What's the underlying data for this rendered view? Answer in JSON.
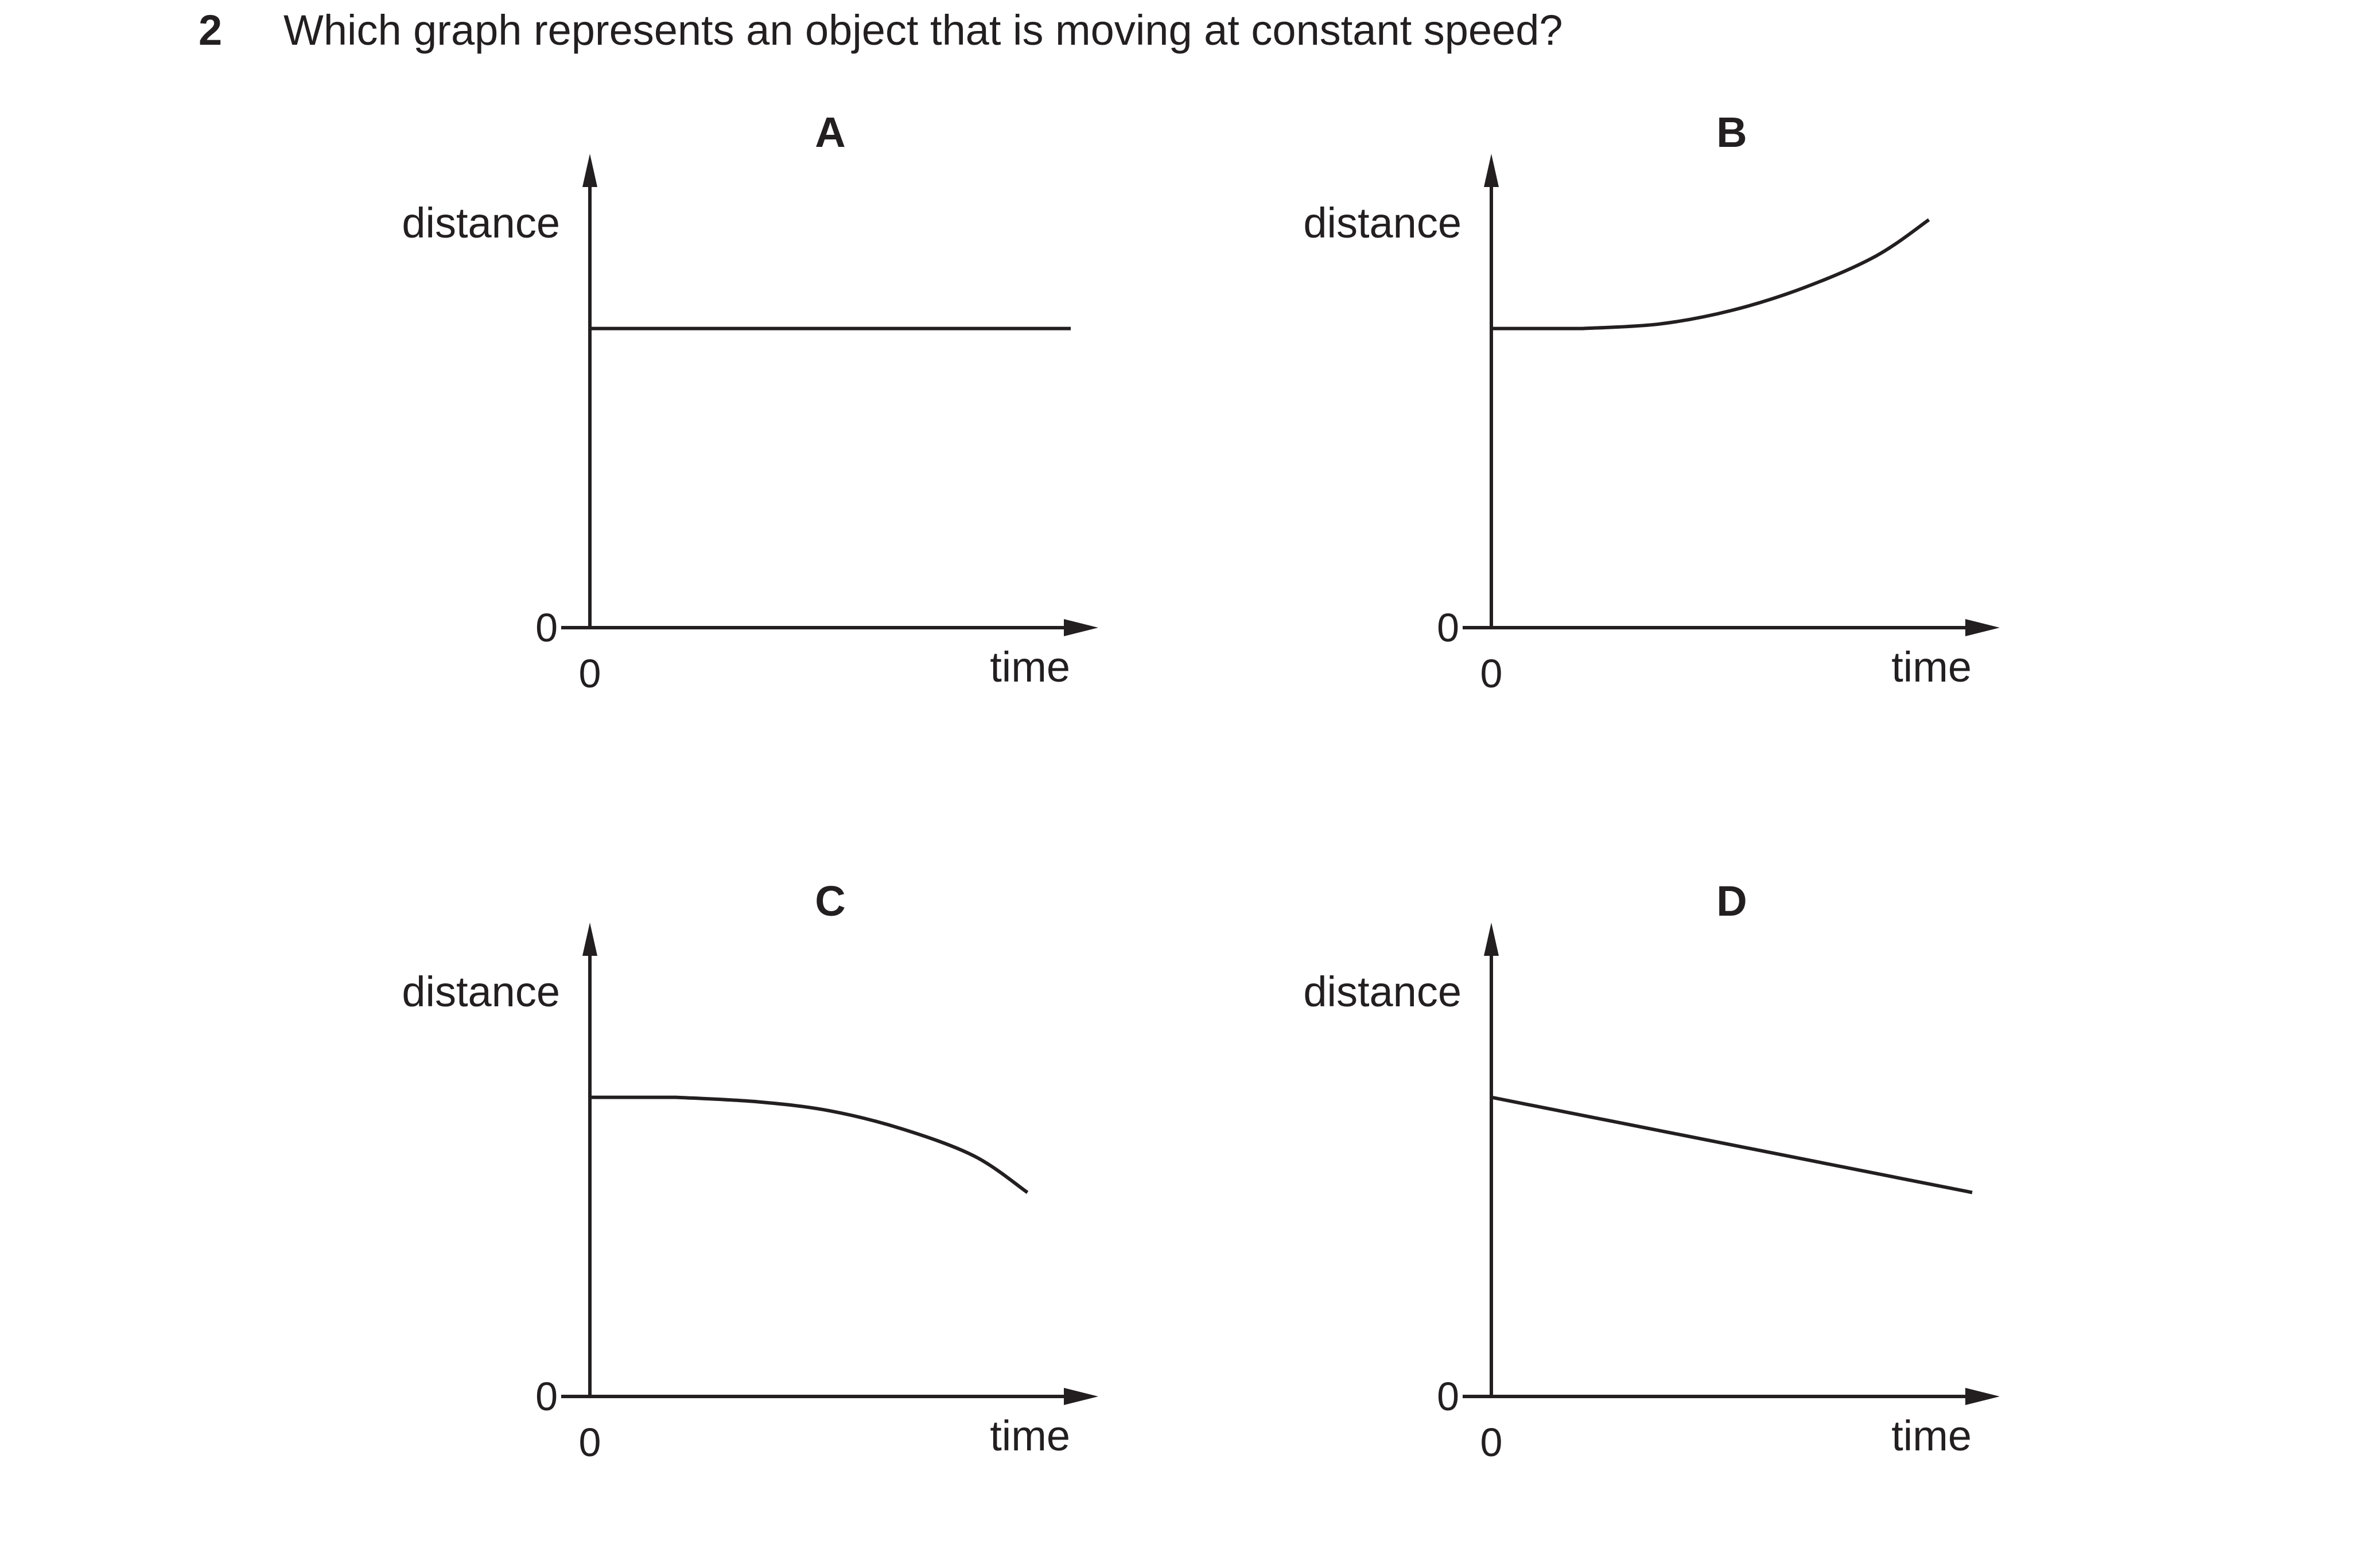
{
  "question": {
    "number": "2",
    "text": "Which graph represents an object that is moving at constant speed?"
  },
  "chart_data": [
    {
      "type": "line",
      "title": "A",
      "xlabel": "time",
      "ylabel": "distance",
      "x_tick_labels": [
        "0"
      ],
      "y_tick_labels": [
        "0"
      ],
      "xlim": [
        0,
        10
      ],
      "ylim": [
        0,
        10
      ],
      "grid": false,
      "series": [
        {
          "x": [
            0,
            10
          ],
          "y": [
            6.6,
            6.6
          ]
        }
      ]
    },
    {
      "type": "line",
      "title": "B",
      "xlabel": "time",
      "ylabel": "distance",
      "x_tick_labels": [
        "0"
      ],
      "y_tick_labels": [
        "0"
      ],
      "xlim": [
        0,
        10
      ],
      "ylim": [
        0,
        10
      ],
      "grid": false,
      "series": [
        {
          "x": [
            0,
            1.9,
            3.5,
            5,
            6.5,
            8,
            9.1
          ],
          "y": [
            6.6,
            6.6,
            6.7,
            7.0,
            7.5,
            8.2,
            9.0
          ]
        }
      ]
    },
    {
      "type": "line",
      "title": "C",
      "xlabel": "time",
      "ylabel": "distance",
      "x_tick_labels": [
        "0"
      ],
      "y_tick_labels": [
        "0"
      ],
      "xlim": [
        0,
        10
      ],
      "ylim": [
        0,
        10
      ],
      "grid": false,
      "series": [
        {
          "x": [
            0,
            1.8,
            3.5,
            5,
            6.5,
            8,
            9.1
          ],
          "y": [
            6.6,
            6.6,
            6.5,
            6.3,
            5.9,
            5.3,
            4.5
          ]
        }
      ]
    },
    {
      "type": "line",
      "title": "D",
      "xlabel": "time",
      "ylabel": "distance",
      "x_tick_labels": [
        "0"
      ],
      "y_tick_labels": [
        "0"
      ],
      "xlim": [
        0,
        10
      ],
      "ylim": [
        0,
        10
      ],
      "grid": false,
      "series": [
        {
          "x": [
            0,
            10
          ],
          "y": [
            6.6,
            4.5
          ]
        }
      ]
    }
  ]
}
